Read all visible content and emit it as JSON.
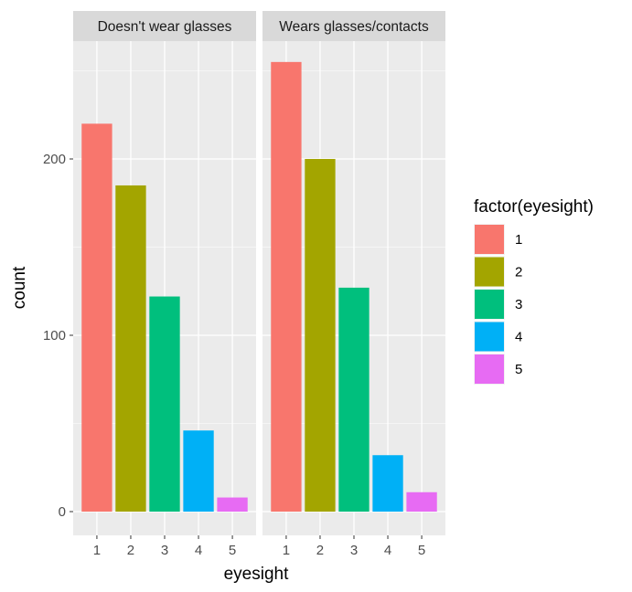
{
  "chart_data": {
    "type": "bar",
    "facets": [
      {
        "label": "Doesn't wear glasses",
        "categories": [
          "1",
          "2",
          "3",
          "4",
          "5"
        ],
        "values": [
          220,
          185,
          122,
          46,
          8
        ]
      },
      {
        "label": "Wears glasses/contacts",
        "categories": [
          "1",
          "2",
          "3",
          "4",
          "5"
        ],
        "values": [
          255,
          200,
          127,
          32,
          11
        ]
      }
    ],
    "xlabel": "eyesight",
    "ylabel": "count",
    "ylim": [
      0,
      278
    ],
    "y_ticks": [
      0,
      100,
      200
    ],
    "y_tick_labels": [
      "0",
      "100",
      "200"
    ],
    "grid": true,
    "legend": {
      "title": "factor(eyesight)",
      "position": "right",
      "entries": [
        "1",
        "2",
        "3",
        "4",
        "5"
      ]
    },
    "colors": [
      "#F8766D",
      "#A3A500",
      "#00BF7D",
      "#00B0F6",
      "#E76BF3"
    ],
    "panel_background": "#EBEBEB",
    "strip_background": "#D9D9D9",
    "grid_color": "#FFFFFF"
  }
}
